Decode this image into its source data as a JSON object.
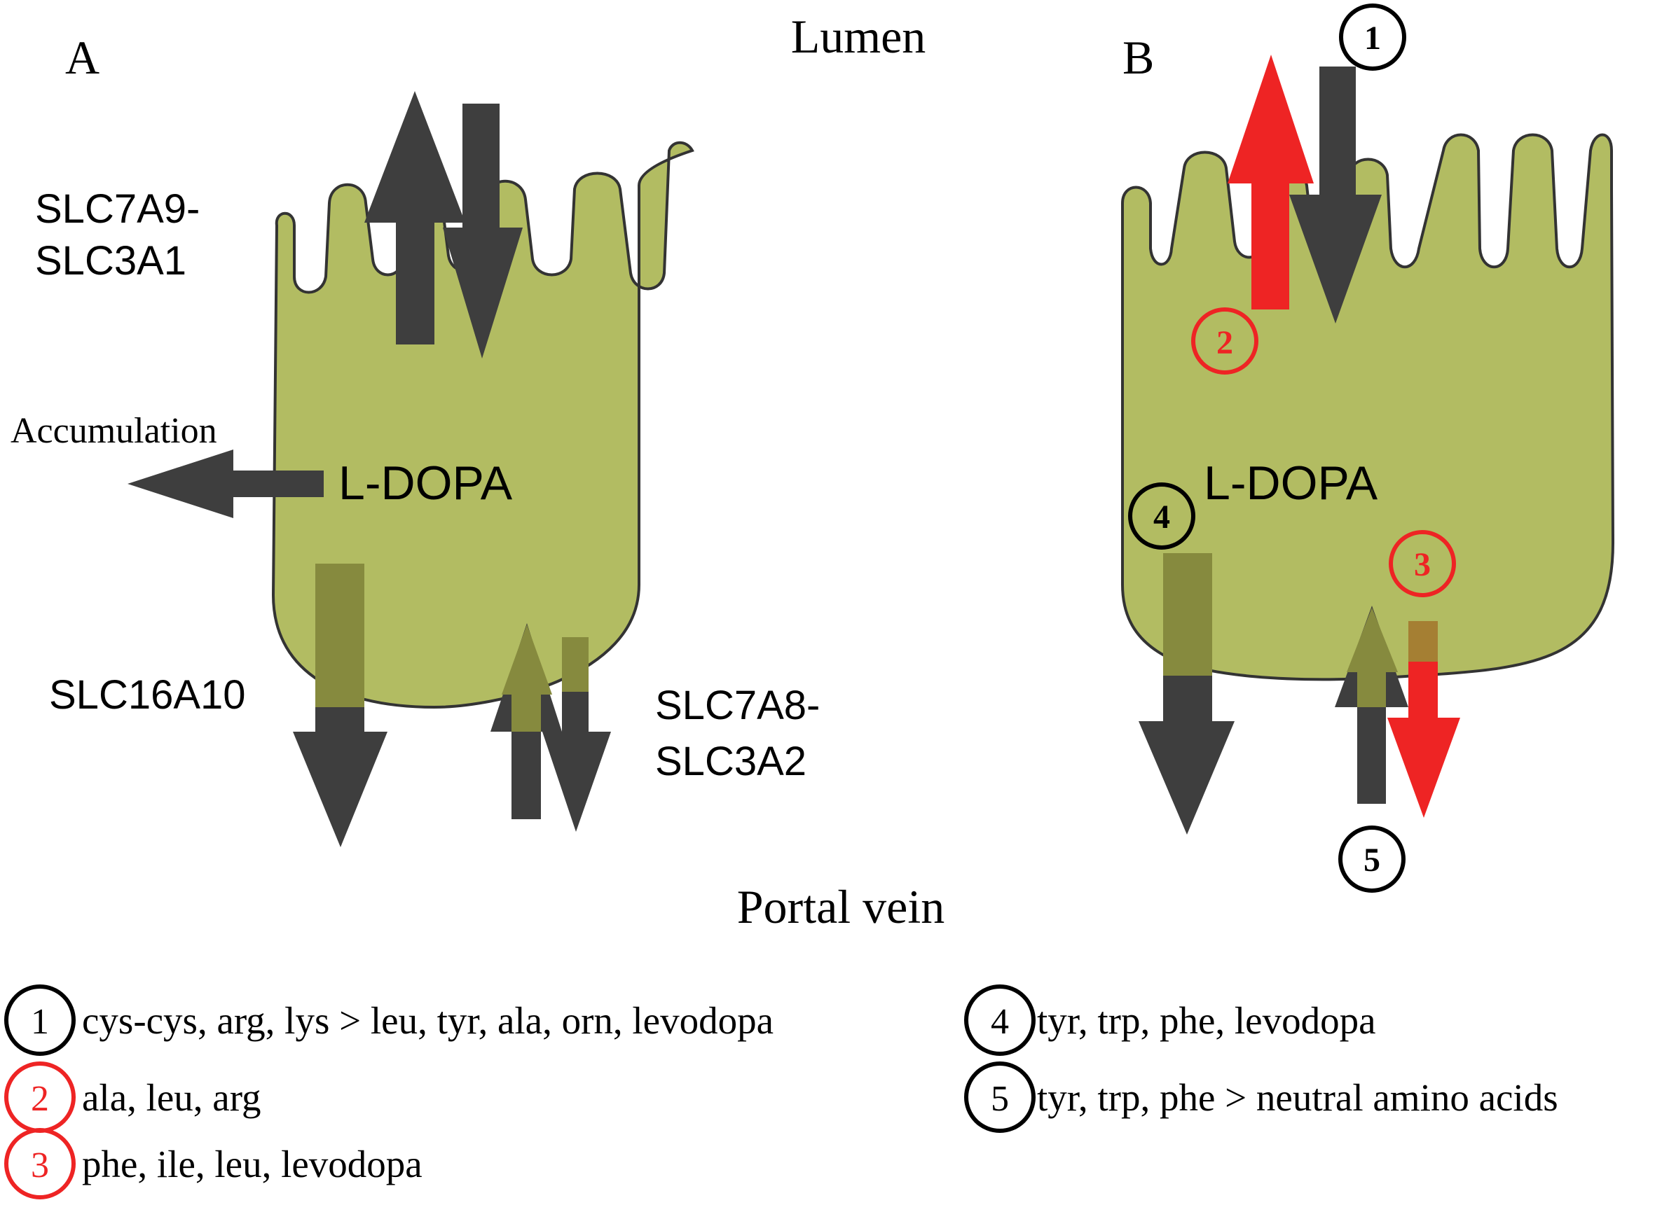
{
  "colors": {
    "cell_fill": "#b2bc62",
    "cell_stroke": "#333333",
    "arrow_dark": "#3e3e3e",
    "arrow_red": "#ee2424",
    "arrow_shadow": "#868a3e",
    "text": "#000000"
  },
  "labels": {
    "lumen": "Lumen",
    "portal_vein": "Portal vein",
    "panel_a": "A",
    "panel_b": "B",
    "ldopa_a": "L-DOPA",
    "ldopa_b": "L-DOPA",
    "accumulation": "Accumulation",
    "slc7a9_line1": "SLC7A9-",
    "slc7a9_line2": "SLC3A1",
    "slc16a10": "SLC16A10",
    "slc7a8_line1": "SLC7A8-",
    "slc7a8_line2": "SLC3A2"
  },
  "markers": {
    "m1": "1",
    "m2": "2",
    "m3": "3",
    "m4": "4",
    "m5": "5"
  },
  "legend": [
    {
      "num": "1",
      "text": "cys-cys, arg, lys > leu, tyr, ala, orn, levodopa",
      "color": "#000000"
    },
    {
      "num": "2",
      "text": "ala, leu, arg",
      "color": "#ee2424"
    },
    {
      "num": "3",
      "text": "phe, ile, leu, levodopa",
      "color": "#ee2424"
    },
    {
      "num": "4",
      "text": "tyr, trp, phe, levodopa",
      "color": "#000000"
    },
    {
      "num": "5",
      "text": "tyr, trp, phe > neutral amino acids",
      "color": "#000000"
    }
  ]
}
